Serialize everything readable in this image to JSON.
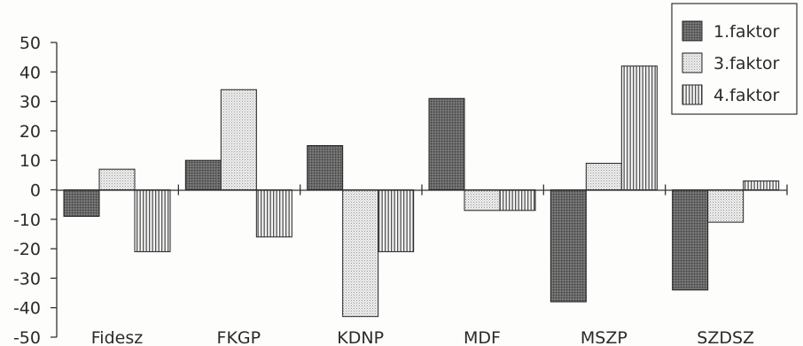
{
  "chart_data": {
    "type": "bar",
    "title": "",
    "xlabel": "",
    "ylabel": "",
    "categories": [
      "Fidesz",
      "FKGP",
      "KDNP",
      "MDF",
      "MSZP",
      "SZDSZ"
    ],
    "series": [
      {
        "name": "1.faktor",
        "values": [
          -9,
          10,
          15,
          31,
          -38,
          -34
        ],
        "pattern": "dark-dots"
      },
      {
        "name": "3.faktor",
        "values": [
          7,
          34,
          -43,
          -7,
          9,
          -11
        ],
        "pattern": "light-dots"
      },
      {
        "name": "4.faktor",
        "values": [
          -21,
          -16,
          -21,
          -7,
          42,
          3
        ],
        "pattern": "vertical-stripes"
      }
    ],
    "ylim": [
      -50,
      50
    ],
    "yticks": [
      50,
      40,
      30,
      20,
      10,
      0,
      -10,
      -20,
      -30,
      -40,
      -50
    ],
    "grid": false,
    "legend": "top-right",
    "colors": {
      "dark": "#5a5a5a",
      "light": "#e6e6e6",
      "stripe": "#7a7a7a",
      "text": "#2a2a2a"
    }
  }
}
